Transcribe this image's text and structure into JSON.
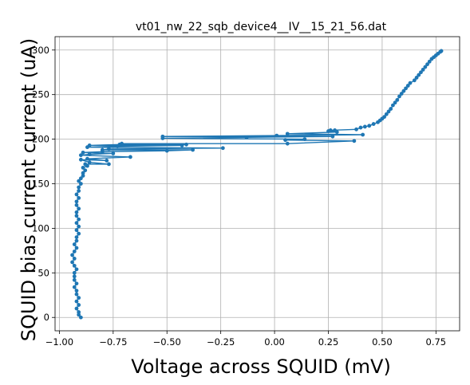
{
  "chart_data": {
    "type": "line",
    "title": "vt01_nw_22_sqb_device4__IV__15_21_56.dat",
    "xlabel": "Voltage across SQUID (mV)",
    "ylabel": "SQUID bias current current (uA)",
    "xlim": [
      -1.02,
      0.86
    ],
    "ylim": [
      -15,
      315
    ],
    "xticks": [
      -1.0,
      -0.75,
      -0.5,
      -0.25,
      0.0,
      0.25,
      0.5,
      0.75
    ],
    "xtick_labels": [
      "−1.00",
      "−0.75",
      "−0.50",
      "−0.25",
      "0.00",
      "0.25",
      "0.50",
      "0.75"
    ],
    "yticks": [
      0,
      50,
      100,
      150,
      200,
      250,
      300
    ],
    "ytick_labels": [
      "0",
      "50",
      "100",
      "150",
      "200",
      "250",
      "300"
    ],
    "grid": true,
    "color": "#1f77b4",
    "marker": "circle",
    "series": [
      {
        "points": [
          [
            -0.9,
            0
          ],
          [
            -0.91,
            3
          ],
          [
            -0.91,
            6
          ],
          [
            -0.92,
            10
          ],
          [
            -0.91,
            14
          ],
          [
            -0.92,
            18
          ],
          [
            -0.91,
            22
          ],
          [
            -0.92,
            26
          ],
          [
            -0.92,
            30
          ],
          [
            -0.93,
            34
          ],
          [
            -0.92,
            38
          ],
          [
            -0.93,
            42
          ],
          [
            -0.93,
            46
          ],
          [
            -0.93,
            50
          ],
          [
            -0.92,
            54
          ],
          [
            -0.93,
            58
          ],
          [
            -0.94,
            62
          ],
          [
            -0.93,
            66
          ],
          [
            -0.94,
            70
          ],
          [
            -0.93,
            74
          ],
          [
            -0.92,
            78
          ],
          [
            -0.93,
            82
          ],
          [
            -0.92,
            86
          ],
          [
            -0.92,
            90
          ],
          [
            -0.91,
            94
          ],
          [
            -0.92,
            98
          ],
          [
            -0.91,
            102
          ],
          [
            -0.92,
            106
          ],
          [
            -0.91,
            110
          ],
          [
            -0.92,
            114
          ],
          [
            -0.92,
            118
          ],
          [
            -0.91,
            122
          ],
          [
            -0.92,
            126
          ],
          [
            -0.92,
            130
          ],
          [
            -0.91,
            134
          ],
          [
            -0.92,
            138
          ],
          [
            -0.91,
            142
          ],
          [
            -0.91,
            146
          ],
          [
            -0.9,
            150
          ],
          [
            -0.91,
            153
          ],
          [
            -0.9,
            156
          ],
          [
            -0.89,
            159
          ],
          [
            -0.89,
            162
          ],
          [
            -0.88,
            165
          ],
          [
            -0.89,
            168
          ],
          [
            -0.87,
            170
          ],
          [
            -0.88,
            172
          ],
          [
            -0.77,
            172
          ],
          [
            -0.86,
            174
          ],
          [
            -0.9,
            177
          ],
          [
            -0.78,
            176
          ],
          [
            -0.87,
            178
          ],
          [
            -0.67,
            180
          ],
          [
            -0.9,
            182
          ],
          [
            -0.86,
            183
          ],
          [
            -0.75,
            184
          ],
          [
            -0.89,
            185
          ],
          [
            -0.8,
            186
          ],
          [
            -0.5,
            187
          ],
          [
            -0.38,
            188
          ],
          [
            -0.8,
            188
          ],
          [
            -0.77,
            189
          ],
          [
            -0.24,
            190
          ],
          [
            -0.87,
            191
          ],
          [
            -0.73,
            192
          ],
          [
            -0.43,
            193
          ],
          [
            -0.86,
            193
          ],
          [
            -0.72,
            194
          ],
          [
            -0.41,
            194
          ],
          [
            -0.71,
            195
          ],
          [
            0.06,
            195
          ],
          [
            0.37,
            198
          ],
          [
            0.05,
            199
          ],
          [
            0.14,
            200
          ],
          [
            -0.52,
            201
          ],
          [
            -0.13,
            202
          ],
          [
            0.27,
            203
          ],
          [
            -0.52,
            203
          ],
          [
            0.01,
            204
          ],
          [
            0.41,
            205
          ],
          [
            0.06,
            206
          ],
          [
            0.29,
            208
          ],
          [
            0.25,
            209
          ],
          [
            0.28,
            210
          ],
          [
            0.26,
            210
          ],
          [
            0.38,
            211
          ],
          [
            0.4,
            213
          ],
          [
            0.42,
            214
          ],
          [
            0.44,
            215
          ],
          [
            0.46,
            217
          ],
          [
            0.48,
            219
          ],
          [
            0.49,
            221
          ],
          [
            0.5,
            223
          ],
          [
            0.51,
            225
          ],
          [
            0.52,
            228
          ],
          [
            0.53,
            231
          ],
          [
            0.54,
            234
          ],
          [
            0.55,
            238
          ],
          [
            0.56,
            241
          ],
          [
            0.57,
            244
          ],
          [
            0.58,
            248
          ],
          [
            0.59,
            251
          ],
          [
            0.6,
            254
          ],
          [
            0.61,
            257
          ],
          [
            0.62,
            260
          ],
          [
            0.63,
            263
          ],
          [
            0.65,
            266
          ],
          [
            0.66,
            269
          ],
          [
            0.67,
            272
          ],
          [
            0.68,
            275
          ],
          [
            0.69,
            278
          ],
          [
            0.7,
            281
          ],
          [
            0.71,
            284
          ],
          [
            0.72,
            287
          ],
          [
            0.73,
            290
          ],
          [
            0.74,
            292
          ],
          [
            0.75,
            294
          ],
          [
            0.76,
            296
          ],
          [
            0.77,
            298
          ],
          [
            0.775,
            299
          ]
        ]
      }
    ]
  }
}
